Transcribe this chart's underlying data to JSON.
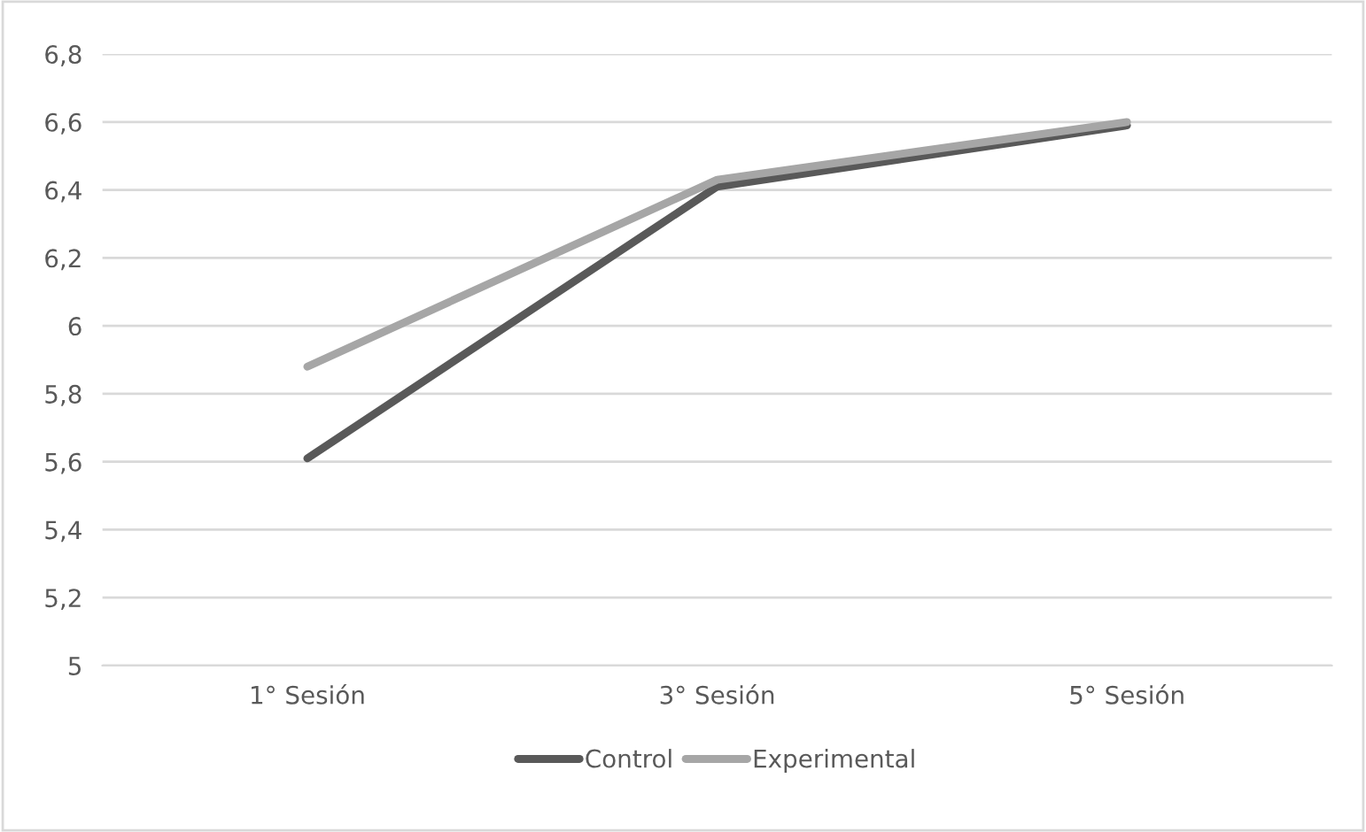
{
  "chart_data": {
    "type": "line",
    "categories": [
      "1° Sesión",
      "3° Sesión",
      "5° Sesión"
    ],
    "series": [
      {
        "name": "Control",
        "color": "#595959",
        "values": [
          5.61,
          6.41,
          6.59
        ]
      },
      {
        "name": "Experimental",
        "color": "#a6a6a6",
        "values": [
          5.88,
          6.43,
          6.6
        ]
      }
    ],
    "ylim": [
      5,
      6.8
    ],
    "yticks": [
      5,
      {
        "value": 5.2,
        "label": "5,2"
      },
      {
        "value": 5.4,
        "label": "5,4"
      },
      {
        "value": 5.6,
        "label": "5,6"
      },
      {
        "value": 5.8,
        "label": "5,8"
      },
      6,
      {
        "value": 6.2,
        "label": "6,2"
      },
      {
        "value": 6.4,
        "label": "6,4"
      },
      {
        "value": 6.6,
        "label": "6,6"
      },
      {
        "value": 6.8,
        "label": "6,8"
      }
    ],
    "grid": "y",
    "legend": "bottom",
    "marker": "none",
    "line_style": "solid"
  }
}
